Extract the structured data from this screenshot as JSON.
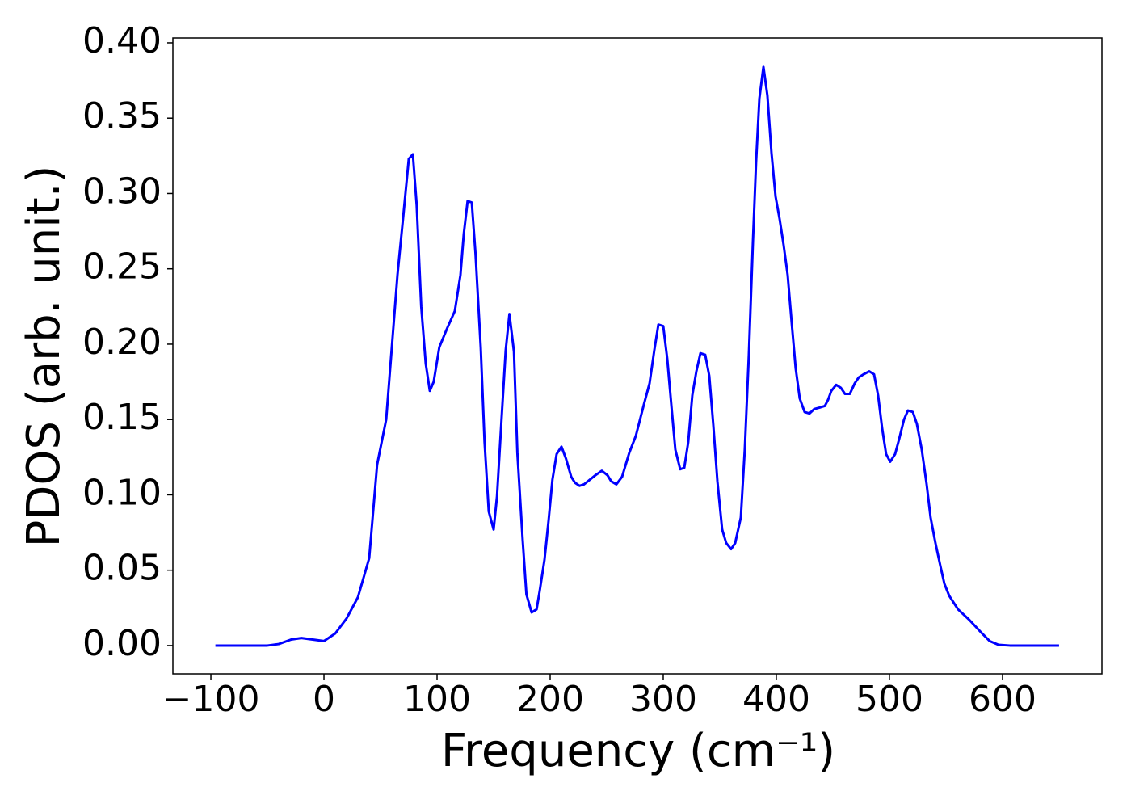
{
  "chart_data": {
    "type": "line",
    "xlabel": "Frequency (cm⁻¹)",
    "ylabel": "PDOS (arb. unit.)",
    "xlim": [
      -133.6,
      687.9
    ],
    "ylim": [
      -0.0188,
      0.4032
    ],
    "xticks": [
      {
        "value": -100,
        "label": "−100"
      },
      0,
      100,
      200,
      300,
      400,
      500,
      600
    ],
    "yticks": [
      {
        "value": 0,
        "label": "0.00"
      },
      {
        "value": 0.05,
        "label": "0.05"
      },
      {
        "value": 0.1,
        "label": "0.10"
      },
      {
        "value": 0.15,
        "label": "0.15"
      },
      {
        "value": 0.2,
        "label": "0.20"
      },
      {
        "value": 0.25,
        "label": "0.25"
      },
      {
        "value": 0.3,
        "label": "0.30"
      },
      {
        "value": 0.35,
        "label": "0.35"
      },
      {
        "value": 0.4,
        "label": "0.40"
      }
    ],
    "grid": false,
    "x": [
      -96,
      -50,
      -40,
      -29,
      -20,
      -10,
      0,
      10,
      20,
      30,
      40,
      47,
      55,
      60,
      65,
      70,
      75,
      78.6,
      82,
      86,
      90,
      93.6,
      97,
      102,
      108.6,
      115.7,
      120.7,
      123.6,
      127,
      130.7,
      134,
      138.6,
      142,
      145.7,
      150,
      153,
      157,
      160.7,
      164,
      168,
      171,
      175.7,
      179,
      183.6,
      188,
      190.7,
      195,
      198.6,
      202,
      205.7,
      210,
      214,
      218.6,
      222,
      226,
      230,
      240,
      245.7,
      250.7,
      254,
      258.6,
      263.6,
      270,
      275.7,
      282.9,
      287.9,
      292.1,
      295.7,
      300,
      303.6,
      307.1,
      310.7,
      315,
      318.6,
      322.1,
      325.7,
      329.3,
      332.9,
      337.1,
      340.7,
      344.3,
      347.9,
      352.1,
      355.7,
      360,
      363.6,
      368.6,
      372.1,
      375.7,
      379.3,
      382.1,
      385,
      388.6,
      392.1,
      395.7,
      399.3,
      402.9,
      406.4,
      410,
      413.6,
      417.1,
      420.7,
      425,
      429.3,
      433.6,
      438.6,
      442.9,
      445.7,
      448.6,
      452.9,
      457.1,
      460.7,
      465,
      469.3,
      472.9,
      477.1,
      482.1,
      486.4,
      490,
      493.6,
      497.1,
      500.7,
      505,
      508.6,
      512.9,
      516.4,
      520.7,
      524.3,
      528.6,
      532.9,
      536.4,
      540.7,
      545,
      548.6,
      552.9,
      560.7,
      570.7,
      580.7,
      588.6,
      596.4,
      606.4,
      650
    ],
    "series": [
      {
        "name": "PDOS",
        "color": "#0000ff",
        "values": [
          0,
          0,
          0.001,
          0.004,
          0.005,
          0.004,
          0.003,
          0.008,
          0.018,
          0.032,
          0.058,
          0.12,
          0.15,
          0.198,
          0.246,
          0.284,
          0.323,
          0.326,
          0.292,
          0.225,
          0.187,
          0.169,
          0.175,
          0.198,
          0.21,
          0.222,
          0.246,
          0.273,
          0.295,
          0.294,
          0.26,
          0.198,
          0.135,
          0.089,
          0.077,
          0.099,
          0.15,
          0.196,
          0.22,
          0.195,
          0.128,
          0.07,
          0.034,
          0.022,
          0.024,
          0.036,
          0.057,
          0.083,
          0.11,
          0.127,
          0.132,
          0.124,
          0.112,
          0.108,
          0.106,
          0.107,
          0.113,
          0.116,
          0.113,
          0.109,
          0.107,
          0.112,
          0.128,
          0.139,
          0.16,
          0.174,
          0.196,
          0.213,
          0.212,
          0.19,
          0.16,
          0.13,
          0.117,
          0.118,
          0.135,
          0.166,
          0.182,
          0.194,
          0.193,
          0.179,
          0.146,
          0.109,
          0.077,
          0.068,
          0.064,
          0.068,
          0.085,
          0.13,
          0.193,
          0.268,
          0.321,
          0.363,
          0.384,
          0.365,
          0.327,
          0.298,
          0.283,
          0.266,
          0.246,
          0.214,
          0.184,
          0.164,
          0.155,
          0.154,
          0.157,
          0.158,
          0.159,
          0.163,
          0.169,
          0.173,
          0.171,
          0.167,
          0.167,
          0.174,
          0.178,
          0.18,
          0.182,
          0.18,
          0.166,
          0.144,
          0.127,
          0.122,
          0.127,
          0.137,
          0.15,
          0.156,
          0.155,
          0.147,
          0.13,
          0.107,
          0.085,
          0.068,
          0.053,
          0.041,
          0.033,
          0.024,
          0.017,
          0.009,
          0.003,
          0.0005,
          0,
          0
        ]
      }
    ]
  }
}
